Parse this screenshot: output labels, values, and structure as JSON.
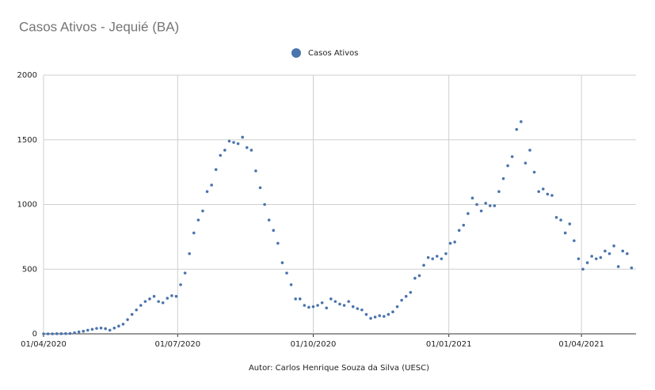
{
  "chart_data": {
    "type": "scatter",
    "title": "Casos Ativos - Jequié (BA)",
    "footer": "Autor: Carlos Henrique Souza da Silva  (UESC)",
    "x": [
      "01/04/2020",
      "04/04/2020",
      "07/04/2020",
      "10/04/2020",
      "13/04/2020",
      "16/04/2020",
      "19/04/2020",
      "22/04/2020",
      "25/04/2020",
      "28/04/2020",
      "01/05/2020",
      "04/05/2020",
      "07/05/2020",
      "10/05/2020",
      "13/05/2020",
      "16/05/2020",
      "19/05/2020",
      "22/05/2020",
      "25/05/2020",
      "28/05/2020",
      "31/05/2020",
      "03/06/2020",
      "06/06/2020",
      "09/06/2020",
      "12/06/2020",
      "15/06/2020",
      "18/06/2020",
      "21/06/2020",
      "24/06/2020",
      "27/06/2020",
      "30/06/2020",
      "03/07/2020",
      "06/07/2020",
      "09/07/2020",
      "12/07/2020",
      "15/07/2020",
      "18/07/2020",
      "21/07/2020",
      "24/07/2020",
      "27/07/2020",
      "30/07/2020",
      "02/08/2020",
      "05/08/2020",
      "08/08/2020",
      "11/08/2020",
      "14/08/2020",
      "17/08/2020",
      "20/08/2020",
      "23/08/2020",
      "26/08/2020",
      "29/08/2020",
      "01/09/2020",
      "04/09/2020",
      "07/09/2020",
      "10/09/2020",
      "13/09/2020",
      "16/09/2020",
      "19/09/2020",
      "22/09/2020",
      "25/09/2020",
      "28/09/2020",
      "01/10/2020",
      "04/10/2020",
      "07/10/2020",
      "10/10/2020",
      "13/10/2020",
      "16/10/2020",
      "19/10/2020",
      "22/10/2020",
      "25/10/2020",
      "28/10/2020",
      "31/10/2020",
      "03/11/2020",
      "06/11/2020",
      "09/11/2020",
      "12/11/2020",
      "15/11/2020",
      "18/11/2020",
      "21/11/2020",
      "24/11/2020",
      "27/11/2020",
      "30/11/2020",
      "03/12/2020",
      "06/12/2020",
      "09/12/2020",
      "12/12/2020",
      "15/12/2020",
      "18/12/2020",
      "21/12/2020",
      "24/12/2020",
      "27/12/2020",
      "30/12/2020",
      "02/01/2021",
      "05/01/2021",
      "08/01/2021",
      "11/01/2021",
      "14/01/2021",
      "17/01/2021",
      "20/01/2021",
      "23/01/2021",
      "26/01/2021",
      "29/01/2021",
      "01/02/2021",
      "04/02/2021",
      "07/02/2021",
      "10/02/2021",
      "13/02/2021",
      "16/02/2021",
      "19/02/2021",
      "22/02/2021",
      "25/02/2021",
      "28/02/2021",
      "03/03/2021",
      "06/03/2021",
      "09/03/2021",
      "12/03/2021",
      "15/03/2021",
      "18/03/2021",
      "21/03/2021",
      "24/03/2021",
      "27/03/2021",
      "30/03/2021",
      "02/04/2021",
      "05/04/2021",
      "08/04/2021",
      "11/04/2021",
      "14/04/2021",
      "17/04/2021",
      "20/04/2021",
      "23/04/2021",
      "26/04/2021",
      "29/04/2021",
      "02/05/2021",
      "05/05/2021"
    ],
    "series": [
      {
        "name": "Casos Ativos",
        "color": "#4a74ad",
        "values": [
          0,
          0,
          0,
          1,
          1,
          2,
          3,
          8,
          15,
          20,
          28,
          35,
          42,
          45,
          40,
          28,
          45,
          60,
          75,
          110,
          150,
          185,
          220,
          250,
          270,
          290,
          250,
          240,
          275,
          295,
          290,
          380,
          470,
          620,
          780,
          880,
          950,
          1100,
          1150,
          1270,
          1380,
          1420,
          1490,
          1480,
          1470,
          1520,
          1440,
          1420,
          1260,
          1130,
          1000,
          880,
          800,
          700,
          550,
          470,
          380,
          270,
          270,
          220,
          205,
          210,
          220,
          240,
          200,
          270,
          250,
          230,
          220,
          250,
          210,
          195,
          185,
          150,
          120,
          130,
          140,
          135,
          150,
          170,
          210,
          260,
          290,
          320,
          430,
          450,
          530,
          590,
          580,
          600,
          580,
          620,
          700,
          710,
          800,
          840,
          930,
          1050,
          1000,
          950,
          1010,
          990,
          990,
          1100,
          1200,
          1300,
          1370,
          1580,
          1640,
          1320,
          1420,
          1250,
          1100,
          1120,
          1080,
          1070,
          900,
          880,
          780,
          850,
          720,
          580,
          500,
          550,
          600,
          580,
          590,
          640,
          620,
          680,
          520,
          640,
          620,
          510
        ]
      }
    ],
    "xlim": [
      "01/04/2020",
      "08/05/2021"
    ],
    "xticks": [
      "01/04/2020",
      "01/07/2020",
      "01/10/2020",
      "01/01/2021",
      "01/04/2021"
    ],
    "ylim": [
      0,
      2000
    ],
    "yticks": [
      0,
      500,
      1000,
      1500,
      2000
    ],
    "grid": true,
    "legend": "top"
  }
}
